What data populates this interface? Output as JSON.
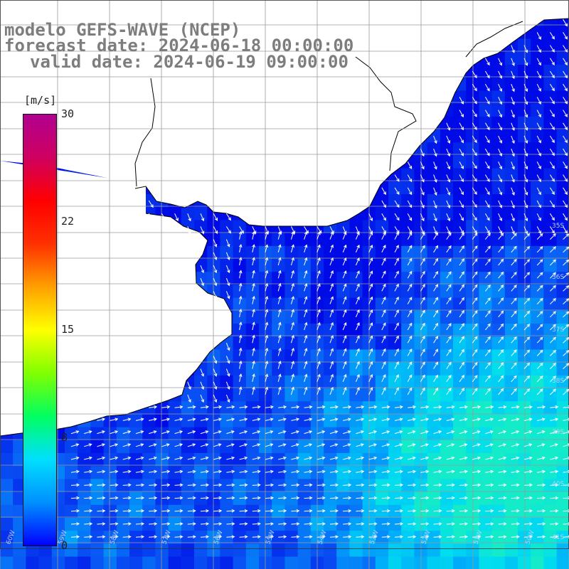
{
  "title": {
    "model": "modelo GEFS-WAVE (NCEP)",
    "forecast": "forecast date: 2024-06-18 00:00:00",
    "valid": "valid date: 2024-06-19 09:00:00"
  },
  "colorbar": {
    "units": "[m/s]",
    "ticks": [
      "30",
      "22",
      "15",
      "8",
      "0"
    ],
    "stops": [
      "#0000ff",
      "#0090ff",
      "#00e0ff",
      "#00ff60",
      "#80ff00",
      "#ffff00",
      "#ffa000",
      "#ff3000",
      "#ff0000",
      "#d00060",
      "#b00090"
    ]
  },
  "map": {
    "land_color": "#ffffff",
    "coast_color": "#000000",
    "grid_color": "#9a9a9a",
    "arrow_color": "#ffffff",
    "lat_labels": [
      "35S",
      "36S",
      "37S",
      "38S",
      "39S",
      "40S",
      "41S"
    ],
    "lon_labels": [
      "60W",
      "59W",
      "58W",
      "57W",
      "56W",
      "55W",
      "54W",
      "53W",
      "52W",
      "51W",
      "50W"
    ]
  }
}
